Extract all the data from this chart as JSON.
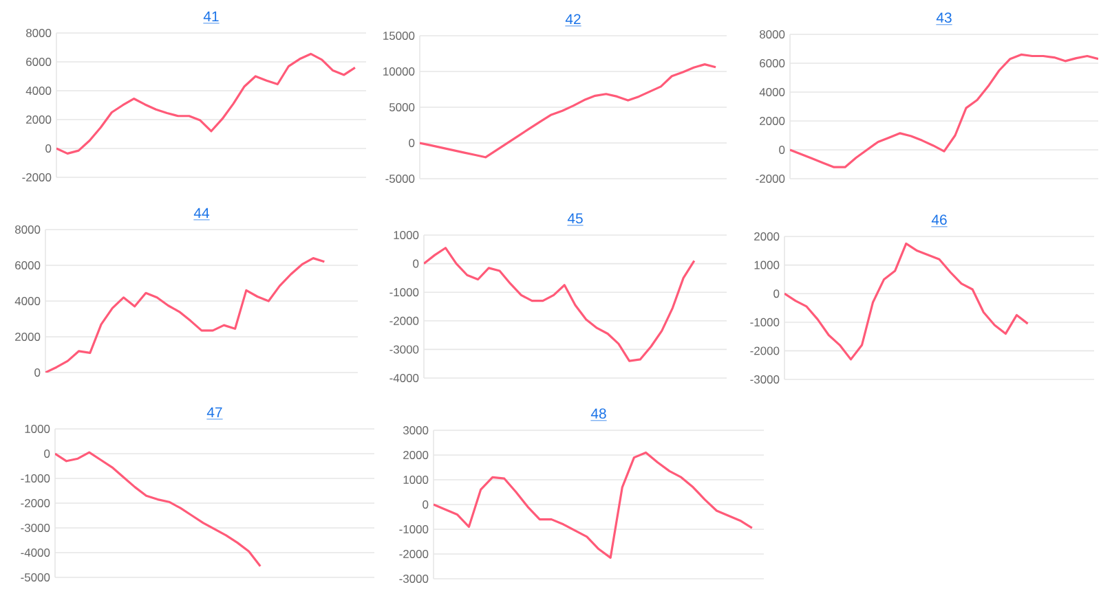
{
  "chart_data": [
    {
      "type": "line",
      "title": "41",
      "categories": [
        null,
        null,
        null,
        null,
        null,
        null,
        null,
        null,
        null,
        null,
        null,
        null,
        null,
        null,
        null,
        null,
        null,
        null,
        null,
        null,
        null,
        null,
        null,
        null,
        null,
        null,
        null,
        null,
        null
      ],
      "values": [
        0,
        -350,
        -150,
        550,
        1450,
        2500,
        3000,
        3450,
        3050,
        2700,
        2450,
        2250,
        2250,
        1950,
        1200,
        2050,
        3100,
        4300,
        5000,
        4700,
        4450,
        5700,
        6200,
        6550,
        6150,
        5400,
        5100,
        5600,
        null
      ],
      "color": "#ff5a78",
      "ylim": [
        -2000,
        8000
      ],
      "yticks": [
        -2000,
        0,
        2000,
        4000,
        6000,
        8000
      ],
      "grid": "y",
      "tick_labels": "y"
    },
    {
      "type": "line",
      "title": "42",
      "categories": [
        null,
        null,
        null,
        null,
        null,
        null,
        null,
        null,
        null,
        null,
        null,
        null,
        null,
        null,
        null,
        null,
        null,
        null,
        null,
        null,
        null,
        null,
        null,
        null,
        null,
        null,
        null,
        null,
        null
      ],
      "values": [
        0,
        -330,
        -660,
        -1000,
        -1330,
        -1660,
        -2000,
        -1000,
        0,
        1000,
        2000,
        3000,
        3950,
        4500,
        5200,
        6000,
        6600,
        6850,
        6500,
        5950,
        6500,
        7200,
        7900,
        9350,
        9900,
        10550,
        11000,
        10600,
        null
      ],
      "color": "#ff5a78",
      "ylim": [
        -5000,
        15000
      ],
      "yticks": [
        -5000,
        0,
        5000,
        10000,
        15000
      ],
      "grid": "y",
      "tick_labels": "y"
    },
    {
      "type": "line",
      "title": "43",
      "categories": [
        null,
        null,
        null,
        null,
        null,
        null,
        null,
        null,
        null,
        null,
        null,
        null,
        null,
        null,
        null,
        null,
        null,
        null,
        null,
        null,
        null,
        null,
        null,
        null,
        null,
        null,
        null,
        null,
        null
      ],
      "values": [
        0,
        -300,
        -600,
        -900,
        -1200,
        -1200,
        -550,
        0,
        550,
        850,
        1150,
        950,
        650,
        300,
        -100,
        1000,
        2900,
        3450,
        4400,
        5500,
        6300,
        6600,
        6500,
        6500,
        6400,
        6150,
        6350,
        6500,
        6300
      ],
      "color": "#ff5a78",
      "ylim": [
        -2000,
        8000
      ],
      "yticks": [
        -2000,
        0,
        2000,
        4000,
        6000,
        8000
      ],
      "grid": "y",
      "tick_labels": "y"
    },
    {
      "type": "line",
      "title": "44",
      "categories": [
        null,
        null,
        null,
        null,
        null,
        null,
        null,
        null,
        null,
        null,
        null,
        null,
        null,
        null,
        null,
        null,
        null,
        null,
        null,
        null,
        null,
        null,
        null,
        null,
        null,
        null,
        null,
        null,
        null
      ],
      "values": [
        0,
        300,
        650,
        1200,
        1100,
        2700,
        3600,
        4200,
        3700,
        4450,
        4200,
        3750,
        3400,
        2900,
        2350,
        2350,
        2650,
        2450,
        4600,
        4250,
        4000,
        4850,
        5500,
        6050,
        6400,
        6200,
        null,
        null,
        null
      ],
      "color": "#ff5a78",
      "ylim": [
        0,
        8000
      ],
      "yticks": [
        0,
        2000,
        4000,
        6000,
        8000
      ],
      "grid": "y",
      "tick_labels": "y"
    },
    {
      "type": "line",
      "title": "45",
      "categories": [
        null,
        null,
        null,
        null,
        null,
        null,
        null,
        null,
        null,
        null,
        null,
        null,
        null,
        null,
        null,
        null,
        null,
        null,
        null,
        null,
        null,
        null,
        null,
        null,
        null,
        null,
        null,
        null,
        null
      ],
      "values": [
        0,
        300,
        550,
        0,
        -400,
        -550,
        -150,
        -250,
        -700,
        -1100,
        -1300,
        -1300,
        -1100,
        -750,
        -1450,
        -1950,
        -2250,
        -2450,
        -2800,
        -3400,
        -3350,
        -2900,
        -2350,
        -1550,
        -500,
        100,
        null,
        null,
        null
      ],
      "color": "#ff5a78",
      "ylim": [
        -4000,
        1000
      ],
      "yticks": [
        -4000,
        -3000,
        -2000,
        -1000,
        0,
        1000
      ],
      "grid": "y",
      "tick_labels": "y"
    },
    {
      "type": "line",
      "title": "46",
      "categories": [
        null,
        null,
        null,
        null,
        null,
        null,
        null,
        null,
        null,
        null,
        null,
        null,
        null,
        null,
        null,
        null,
        null,
        null,
        null,
        null,
        null,
        null,
        null,
        null,
        null,
        null,
        null,
        null,
        null
      ],
      "values": [
        0,
        -250,
        -450,
        -900,
        -1450,
        -1800,
        -2300,
        -1800,
        -300,
        500,
        800,
        1750,
        1500,
        1350,
        1200,
        750,
        350,
        150,
        -650,
        -1100,
        -1400,
        -750,
        -1050,
        null,
        null,
        null,
        null,
        null,
        null
      ],
      "color": "#ff5a78",
      "ylim": [
        -3000,
        2000
      ],
      "yticks": [
        -3000,
        -2000,
        -1000,
        0,
        1000,
        2000
      ],
      "grid": "y",
      "tick_labels": "y"
    },
    {
      "type": "line",
      "title": "47",
      "categories": [
        null,
        null,
        null,
        null,
        null,
        null,
        null,
        null,
        null,
        null,
        null,
        null,
        null,
        null,
        null,
        null,
        null,
        null,
        null,
        null,
        null,
        null,
        null,
        null,
        null,
        null,
        null,
        null,
        null
      ],
      "values": [
        0,
        -300,
        -200,
        50,
        -250,
        -550,
        -950,
        -1350,
        -1700,
        -1850,
        -1950,
        -2200,
        -2500,
        -2800,
        -3050,
        -3300,
        -3600,
        -3950,
        -4550,
        null,
        null,
        null,
        null,
        null,
        null,
        null,
        null,
        null,
        null
      ],
      "color": "#ff5a78",
      "ylim": [
        -5000,
        1000
      ],
      "yticks": [
        -5000,
        -4000,
        -3000,
        -2000,
        -1000,
        0,
        1000
      ],
      "grid": "y",
      "tick_labels": "y"
    },
    {
      "type": "line",
      "title": "48",
      "categories": [
        null,
        null,
        null,
        null,
        null,
        null,
        null,
        null,
        null,
        null,
        null,
        null,
        null,
        null,
        null,
        null,
        null,
        null,
        null,
        null,
        null,
        null,
        null,
        null,
        null,
        null,
        null,
        null,
        null
      ],
      "values": [
        0,
        -200,
        -400,
        -900,
        600,
        1100,
        1050,
        500,
        -100,
        -600,
        -600,
        -800,
        -1050,
        -1300,
        -1800,
        -2150,
        700,
        1900,
        2100,
        1700,
        1350,
        1100,
        700,
        200,
        -250,
        -450,
        -650,
        -950,
        null
      ],
      "color": "#ff5a78",
      "ylim": [
        -3000,
        3000
      ],
      "yticks": [
        -3000,
        -2000,
        -1000,
        0,
        1000,
        2000,
        3000
      ],
      "grid": "y",
      "tick_labels": "y"
    }
  ]
}
